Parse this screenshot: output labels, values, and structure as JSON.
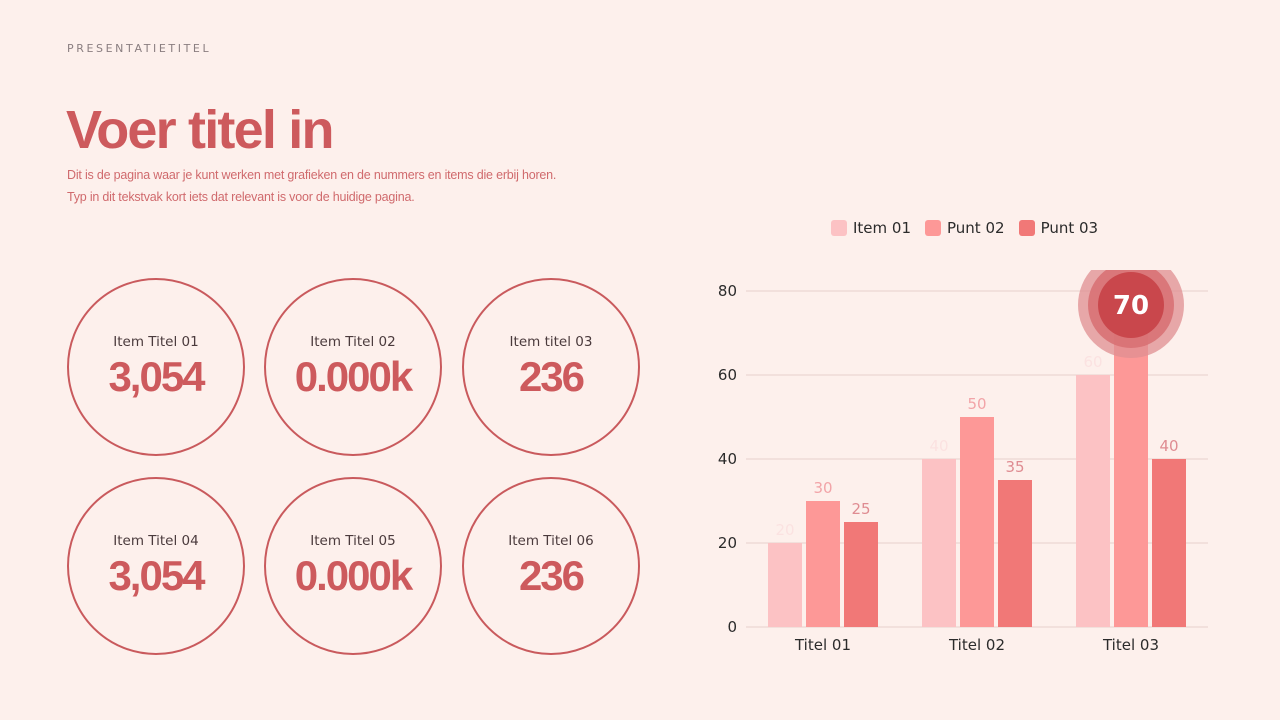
{
  "header": {
    "kicker": "PRESENTATIETITEL",
    "title": "Voer titel in",
    "subtitle_lines": [
      "Dit is de pagina waar je kunt werken met grafieken en de nummers en items die erbij horen.",
      "Typ in dit tekstvak kort iets dat relevant is voor de huidige pagina."
    ]
  },
  "stats": [
    {
      "label": "Item Titel 01",
      "value": "3,054"
    },
    {
      "label": "Item Titel 02",
      "value": "0.000k"
    },
    {
      "label": "Item titel 03",
      "value": "236"
    },
    {
      "label": "Item Titel 04",
      "value": "3,054"
    },
    {
      "label": "Item Titel 05",
      "value": "0.000k"
    },
    {
      "label": "Item Titel 06",
      "value": "236"
    }
  ],
  "chart_data": {
    "type": "bar",
    "categories": [
      "Titel 01",
      "Titel 02",
      "Titel 03"
    ],
    "series": [
      {
        "name": "Item 01",
        "values": [
          20,
          40,
          60
        ],
        "color": "#fcc2c4",
        "label_color": "#fbe2e1"
      },
      {
        "name": "Punt 02",
        "values": [
          30,
          50,
          70
        ],
        "color": "#fd9897",
        "label_color": "#f2a4a8"
      },
      {
        "name": "Punt 03",
        "values": [
          25,
          35,
          40
        ],
        "color": "#f17877",
        "label_color": "#df8c92"
      }
    ],
    "ylim": [
      0,
      80
    ],
    "yticks": [
      0,
      20,
      40,
      60,
      80
    ],
    "legend": "top",
    "highlight": {
      "series": 1,
      "category": 2,
      "label": "70"
    }
  },
  "colors": {
    "accent": "#cd5a5d",
    "background": "#fdf0ec",
    "gridline": "#e6cfcc",
    "highlight_outer": "#df8f91",
    "highlight_mid": "#d76e72",
    "highlight_inner": "#c9474c"
  }
}
